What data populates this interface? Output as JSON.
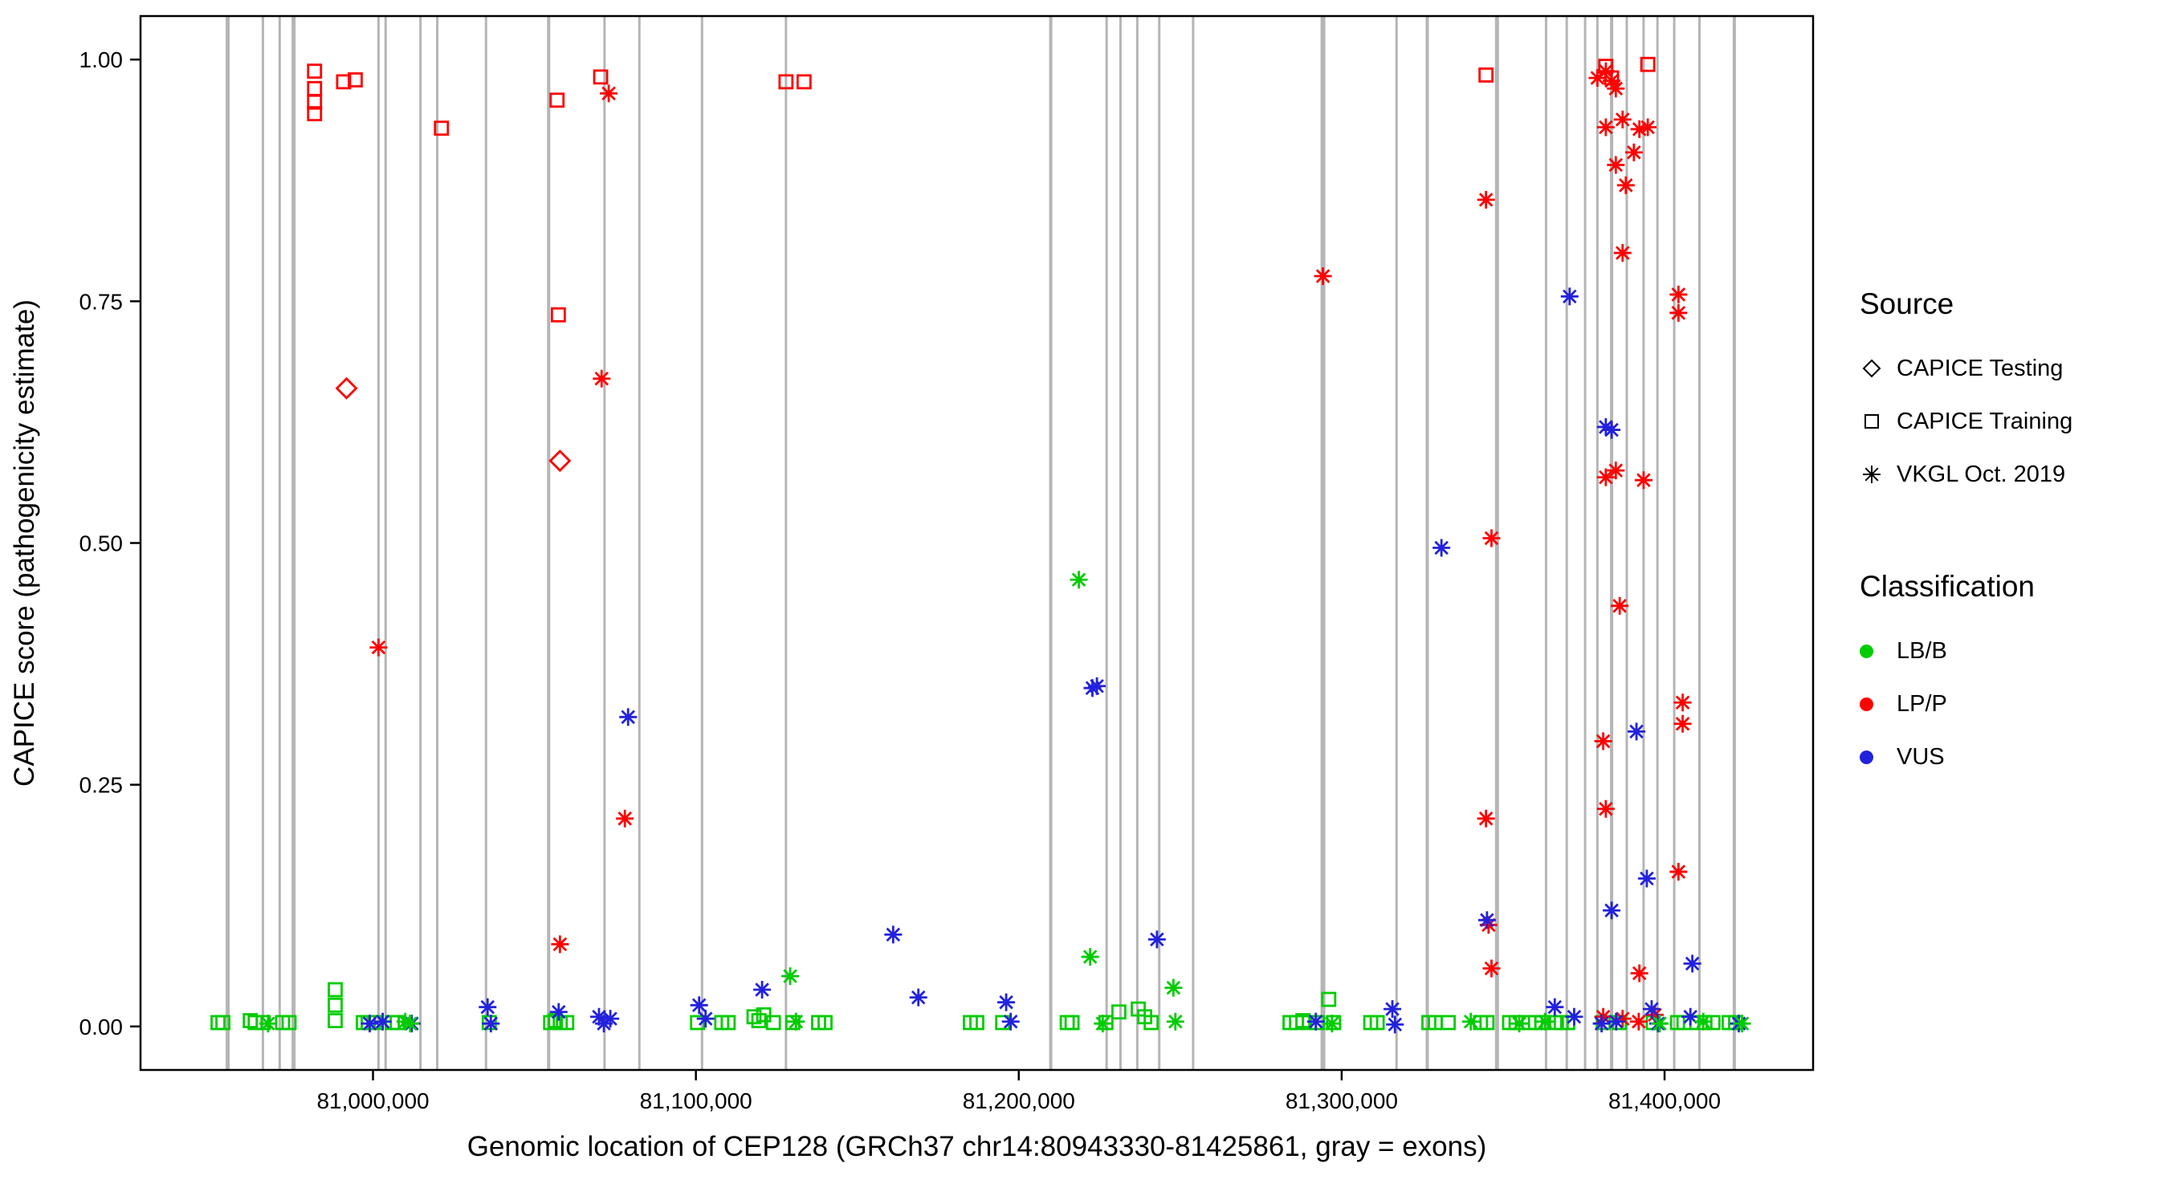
{
  "chart_data": {
    "type": "scatter",
    "title": "",
    "xlabel": "Genomic location of CEP128 (GRCh37 chr14:80943330-81425861, gray = exons)",
    "ylabel": "CAPICE score (pathogenicity estimate)",
    "xlim": [
      80928000,
      81446000
    ],
    "ylim": [
      -0.045,
      1.045
    ],
    "grid": false,
    "legend_position": "right",
    "x_ticks": [
      {
        "v": 81000000,
        "label": "81,000,000"
      },
      {
        "v": 81100000,
        "label": "81,100,000"
      },
      {
        "v": 81200000,
        "label": "81,200,000"
      },
      {
        "v": 81300000,
        "label": "81,300,000"
      },
      {
        "v": 81400000,
        "label": "81,400,000"
      }
    ],
    "y_ticks": [
      {
        "v": 0.0,
        "label": "0.00"
      },
      {
        "v": 0.25,
        "label": "0.25"
      },
      {
        "v": 0.5,
        "label": "0.50"
      },
      {
        "v": 0.75,
        "label": "0.75"
      },
      {
        "v": 1.0,
        "label": "1.00"
      }
    ],
    "colors": {
      "LB/B": "#00CC00",
      "LP/P": "#FF0000",
      "VUS": "#2222DD",
      "exon": "#B5B5B5"
    },
    "exons": [
      [
        80955000,
        5
      ],
      [
        80965900,
        3
      ],
      [
        80971100,
        3
      ],
      [
        80975400,
        5
      ],
      [
        81001700,
        3
      ],
      [
        81003900,
        3
      ],
      [
        81014700,
        3
      ],
      [
        81019900,
        3
      ],
      [
        81035000,
        3
      ],
      [
        81054400,
        4
      ],
      [
        81071700,
        3
      ],
      [
        81082500,
        3
      ],
      [
        81101900,
        3
      ],
      [
        81127900,
        3
      ],
      [
        81209900,
        4
      ],
      [
        81227200,
        3
      ],
      [
        81231500,
        3
      ],
      [
        81236700,
        3
      ],
      [
        81243500,
        3
      ],
      [
        81254000,
        3
      ],
      [
        81294200,
        6
      ],
      [
        81317000,
        3
      ],
      [
        81326500,
        4
      ],
      [
        81348100,
        5
      ],
      [
        81363300,
        3
      ],
      [
        81369700,
        3
      ],
      [
        81375400,
        3
      ],
      [
        81379200,
        3
      ],
      [
        81383600,
        4
      ],
      [
        81388300,
        3
      ],
      [
        81393500,
        3
      ],
      [
        81397800,
        3
      ],
      [
        81403000,
        3
      ],
      [
        81410800,
        3
      ],
      [
        81421600,
        4
      ]
    ],
    "series": [
      {
        "name": "CAPICE Testing",
        "shape": "diamond",
        "points": [
          [
            80991800,
            0.66,
            "LP/P"
          ],
          [
            81057900,
            0.585,
            "LP/P"
          ]
        ]
      },
      {
        "name": "CAPICE Training",
        "shape": "square",
        "points": [
          [
            80981900,
            0.988,
            "LP/P"
          ],
          [
            80981900,
            0.97,
            "LP/P"
          ],
          [
            80981900,
            0.956,
            "LP/P"
          ],
          [
            80981900,
            0.944,
            "LP/P"
          ],
          [
            80990900,
            0.977,
            "LP/P"
          ],
          [
            80994500,
            0.979,
            "LP/P"
          ],
          [
            81021200,
            0.929,
            "LP/P"
          ],
          [
            81057000,
            0.958,
            "LP/P"
          ],
          [
            81070500,
            0.982,
            "LP/P"
          ],
          [
            81057400,
            0.736,
            "LP/P"
          ],
          [
            81127900,
            0.977,
            "LP/P"
          ],
          [
            81133500,
            0.977,
            "LP/P"
          ],
          [
            81344700,
            0.984,
            "LP/P"
          ],
          [
            81381800,
            0.993,
            "LP/P"
          ],
          [
            81383600,
            0.981,
            "LP/P"
          ],
          [
            81394800,
            0.995,
            "LP/P"
          ],
          [
            80952000,
            0.004,
            "LB/B"
          ],
          [
            80953500,
            0.004,
            "LB/B"
          ],
          [
            80962000,
            0.006,
            "LB/B"
          ],
          [
            80963500,
            0.004,
            "LB/B"
          ],
          [
            80966000,
            0.004,
            "LB/B"
          ],
          [
            80972000,
            0.004,
            "LB/B"
          ],
          [
            80974000,
            0.004,
            "LB/B"
          ],
          [
            80988300,
            0.038,
            "LB/B"
          ],
          [
            80988300,
            0.022,
            "LB/B"
          ],
          [
            80988300,
            0.006,
            "LB/B"
          ],
          [
            80997000,
            0.004,
            "LB/B"
          ],
          [
            80998500,
            0.004,
            "LB/B"
          ],
          [
            81000300,
            0.004,
            "LB/B"
          ],
          [
            81006000,
            0.004,
            "LB/B"
          ],
          [
            81007500,
            0.004,
            "LB/B"
          ],
          [
            81036000,
            0.004,
            "LB/B"
          ],
          [
            81055000,
            0.004,
            "LB/B"
          ],
          [
            81056500,
            0.006,
            "LB/B"
          ],
          [
            81058000,
            0.004,
            "LB/B"
          ],
          [
            81060000,
            0.004,
            "LB/B"
          ],
          [
            81100500,
            0.004,
            "LB/B"
          ],
          [
            81108000,
            0.004,
            "LB/B"
          ],
          [
            81110000,
            0.004,
            "LB/B"
          ],
          [
            81118000,
            0.01,
            "LB/B"
          ],
          [
            81119500,
            0.006,
            "LB/B"
          ],
          [
            81121000,
            0.012,
            "LB/B"
          ],
          [
            81124000,
            0.004,
            "LB/B"
          ],
          [
            81130000,
            0.004,
            "LB/B"
          ],
          [
            81138000,
            0.004,
            "LB/B"
          ],
          [
            81140000,
            0.004,
            "LB/B"
          ],
          [
            81185000,
            0.004,
            "LB/B"
          ],
          [
            81187000,
            0.004,
            "LB/B"
          ],
          [
            81195000,
            0.004,
            "LB/B"
          ],
          [
            81215000,
            0.004,
            "LB/B"
          ],
          [
            81216500,
            0.004,
            "LB/B"
          ],
          [
            81227000,
            0.004,
            "LB/B"
          ],
          [
            81231000,
            0.015,
            "LB/B"
          ],
          [
            81237000,
            0.018,
            "LB/B"
          ],
          [
            81239000,
            0.01,
            "LB/B"
          ],
          [
            81241000,
            0.004,
            "LB/B"
          ],
          [
            81284000,
            0.004,
            "LB/B"
          ],
          [
            81286000,
            0.004,
            "LB/B"
          ],
          [
            81288000,
            0.006,
            "LB/B"
          ],
          [
            81290000,
            0.004,
            "LB/B"
          ],
          [
            81292500,
            0.004,
            "LB/B"
          ],
          [
            81296000,
            0.028,
            "LB/B"
          ],
          [
            81297500,
            0.004,
            "LB/B"
          ],
          [
            81309000,
            0.004,
            "LB/B"
          ],
          [
            81311000,
            0.004,
            "LB/B"
          ],
          [
            81327000,
            0.004,
            "LB/B"
          ],
          [
            81329000,
            0.004,
            "LB/B"
          ],
          [
            81333000,
            0.004,
            "LB/B"
          ],
          [
            81343000,
            0.004,
            "LB/B"
          ],
          [
            81345000,
            0.004,
            "LB/B"
          ],
          [
            81352000,
            0.004,
            "LB/B"
          ],
          [
            81354000,
            0.004,
            "LB/B"
          ],
          [
            81358000,
            0.004,
            "LB/B"
          ],
          [
            81360000,
            0.004,
            "LB/B"
          ],
          [
            81362000,
            0.004,
            "LB/B"
          ],
          [
            81366500,
            0.004,
            "LB/B"
          ],
          [
            81368000,
            0.004,
            "LB/B"
          ],
          [
            81370000,
            0.004,
            "LB/B"
          ],
          [
            81381000,
            0.004,
            "LB/B"
          ],
          [
            81386000,
            0.004,
            "LB/B"
          ],
          [
            81396500,
            0.004,
            "LB/B"
          ],
          [
            81404000,
            0.004,
            "LB/B"
          ],
          [
            81406000,
            0.004,
            "LB/B"
          ],
          [
            81410000,
            0.004,
            "LB/B"
          ],
          [
            81412500,
            0.004,
            "LB/B"
          ],
          [
            81415000,
            0.004,
            "LB/B"
          ],
          [
            81420000,
            0.004,
            "LB/B"
          ],
          [
            81422000,
            0.004,
            "LB/B"
          ]
        ]
      },
      {
        "name": "VKGL Oct. 2019",
        "shape": "asterisk",
        "points": [
          [
            81001700,
            0.392,
            "LP/P"
          ],
          [
            81073000,
            0.965,
            "LP/P"
          ],
          [
            81070800,
            0.67,
            "LP/P"
          ],
          [
            81078000,
            0.215,
            "LP/P"
          ],
          [
            81057900,
            0.085,
            "LP/P"
          ],
          [
            81294200,
            0.776,
            "LP/P"
          ],
          [
            81344700,
            0.855,
            "LP/P"
          ],
          [
            81346400,
            0.505,
            "LP/P"
          ],
          [
            81344700,
            0.215,
            "LP/P"
          ],
          [
            81345500,
            0.105,
            "LP/P"
          ],
          [
            81346400,
            0.06,
            "LP/P"
          ],
          [
            81379200,
            0.981,
            "LP/P"
          ],
          [
            81381800,
            0.988,
            "LP/P"
          ],
          [
            81383600,
            0.978,
            "LP/P"
          ],
          [
            81384900,
            0.97,
            "LP/P"
          ],
          [
            81381800,
            0.93,
            "LP/P"
          ],
          [
            81387000,
            0.938,
            "LP/P"
          ],
          [
            81384900,
            0.891,
            "LP/P"
          ],
          [
            81388000,
            0.87,
            "LP/P"
          ],
          [
            81390500,
            0.904,
            "LP/P"
          ],
          [
            81392200,
            0.928,
            "LP/P"
          ],
          [
            81394800,
            0.93,
            "LP/P"
          ],
          [
            81387000,
            0.8,
            "LP/P"
          ],
          [
            81404300,
            0.757,
            "LP/P"
          ],
          [
            81404300,
            0.738,
            "LP/P"
          ],
          [
            81384900,
            0.575,
            "LP/P"
          ],
          [
            81381800,
            0.568,
            "LP/P"
          ],
          [
            81393500,
            0.565,
            "LP/P"
          ],
          [
            81386100,
            0.435,
            "LP/P"
          ],
          [
            81381000,
            0.295,
            "LP/P"
          ],
          [
            81405600,
            0.335,
            "LP/P"
          ],
          [
            81405600,
            0.313,
            "LP/P"
          ],
          [
            81381800,
            0.225,
            "LP/P"
          ],
          [
            81404300,
            0.16,
            "LP/P"
          ],
          [
            81392200,
            0.055,
            "LP/P"
          ],
          [
            81381000,
            0.01,
            "LP/P"
          ],
          [
            81387000,
            0.008,
            "LP/P"
          ],
          [
            81392000,
            0.005,
            "LP/P"
          ],
          [
            81397000,
            0.012,
            "LP/P"
          ],
          [
            81079000,
            0.32,
            "VUS"
          ],
          [
            81161100,
            0.095,
            "VUS"
          ],
          [
            81222800,
            0.35,
            "VUS"
          ],
          [
            81224200,
            0.352,
            "VUS"
          ],
          [
            81242800,
            0.09,
            "VUS"
          ],
          [
            81330900,
            0.495,
            "VUS"
          ],
          [
            81370600,
            0.755,
            "VUS"
          ],
          [
            81381800,
            0.62,
            "VUS"
          ],
          [
            81383600,
            0.617,
            "VUS"
          ],
          [
            81383600,
            0.12,
            "VUS"
          ],
          [
            81394500,
            0.153,
            "VUS"
          ],
          [
            81391300,
            0.305,
            "VUS"
          ],
          [
            81408600,
            0.065,
            "VUS"
          ],
          [
            81345000,
            0.11,
            "VUS"
          ],
          [
            80999000,
            0.003,
            "VUS"
          ],
          [
            81003000,
            0.005,
            "VUS"
          ],
          [
            81012000,
            0.003,
            "VUS"
          ],
          [
            81035500,
            0.02,
            "VUS"
          ],
          [
            81036500,
            0.003,
            "VUS"
          ],
          [
            81057500,
            0.015,
            "VUS"
          ],
          [
            81070000,
            0.01,
            "VUS"
          ],
          [
            81071500,
            0.003,
            "VUS"
          ],
          [
            81073500,
            0.008,
            "VUS"
          ],
          [
            81101000,
            0.022,
            "VUS"
          ],
          [
            81103000,
            0.008,
            "VUS"
          ],
          [
            81120500,
            0.038,
            "VUS"
          ],
          [
            81168900,
            0.03,
            "VUS"
          ],
          [
            81196100,
            0.025,
            "VUS"
          ],
          [
            81197500,
            0.005,
            "VUS"
          ],
          [
            81292000,
            0.005,
            "VUS"
          ],
          [
            81315700,
            0.018,
            "VUS"
          ],
          [
            81316500,
            0.002,
            "VUS"
          ],
          [
            81366000,
            0.02,
            "VUS"
          ],
          [
            81372000,
            0.01,
            "VUS"
          ],
          [
            81380500,
            0.003,
            "VUS"
          ],
          [
            81385000,
            0.005,
            "VUS"
          ],
          [
            81396000,
            0.018,
            "VUS"
          ],
          [
            81398000,
            0.003,
            "VUS"
          ],
          [
            81408000,
            0.01,
            "VUS"
          ],
          [
            81423000,
            0.003,
            "VUS"
          ],
          [
            81218600,
            0.462,
            "LB/B"
          ],
          [
            81222100,
            0.072,
            "LB/B"
          ],
          [
            81247900,
            0.04,
            "LB/B"
          ],
          [
            81129200,
            0.052,
            "LB/B"
          ],
          [
            81010000,
            0.005,
            "LB/B"
          ],
          [
            81011500,
            0.003,
            "LB/B"
          ],
          [
            81131000,
            0.005,
            "LB/B"
          ],
          [
            81226000,
            0.003,
            "LB/B"
          ],
          [
            81248500,
            0.005,
            "LB/B"
          ],
          [
            81297000,
            0.003,
            "LB/B"
          ],
          [
            81340000,
            0.005,
            "LB/B"
          ],
          [
            81355000,
            0.003,
            "LB/B"
          ],
          [
            81363000,
            0.005,
            "LB/B"
          ],
          [
            81398500,
            0.003,
            "LB/B"
          ],
          [
            81412000,
            0.005,
            "LB/B"
          ],
          [
            81424000,
            0.003,
            "LB/B"
          ],
          [
            80967500,
            0.003,
            "LB/B"
          ]
        ]
      }
    ]
  },
  "legend": {
    "source_title": "Source",
    "source_items": [
      "CAPICE Testing",
      "CAPICE Training",
      "VKGL Oct. 2019"
    ],
    "classification_title": "Classification",
    "classification_items": [
      {
        "label": "LB/B",
        "key": "LB/B"
      },
      {
        "label": "LP/P",
        "key": "LP/P"
      },
      {
        "label": "VUS",
        "key": "VUS"
      }
    ]
  }
}
